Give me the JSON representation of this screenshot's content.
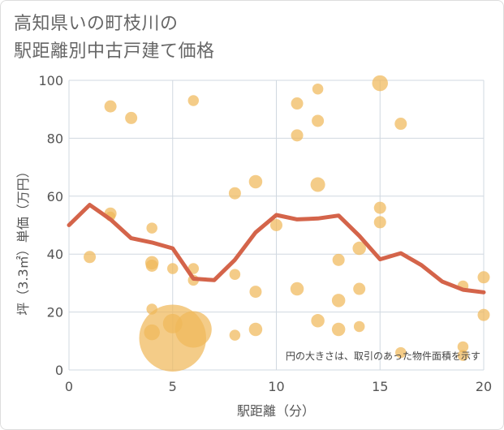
{
  "chart_data": {
    "type": "scatter",
    "title": [
      "高知県いの町枝川の",
      "駅距離別中古戸建て価格"
    ],
    "xlabel": "駅距離（分）",
    "ylabel": "坪（3.3㎡）単価（万円）",
    "xlim": [
      0,
      20
    ],
    "ylim": [
      0,
      100
    ],
    "xticks": [
      0,
      5,
      10,
      15,
      20
    ],
    "yticks": [
      0,
      20,
      40,
      60,
      80,
      100
    ],
    "note": "円の大きさは、取引のあった物件面積を示す",
    "colors": {
      "bubble": "#f0b95a",
      "line": "#d4644a",
      "grid": "#d0d8e0"
    },
    "points": [
      {
        "x": 1,
        "y": 39,
        "s": 1
      },
      {
        "x": 2,
        "y": 91,
        "s": 1
      },
      {
        "x": 2,
        "y": 54,
        "s": 1
      },
      {
        "x": 2,
        "y": 53,
        "s": 0.8
      },
      {
        "x": 3,
        "y": 87,
        "s": 1
      },
      {
        "x": 4,
        "y": 49,
        "s": 0.9
      },
      {
        "x": 4,
        "y": 37,
        "s": 1.1
      },
      {
        "x": 4,
        "y": 36,
        "s": 1
      },
      {
        "x": 4,
        "y": 21,
        "s": 0.9
      },
      {
        "x": 4,
        "y": 13,
        "s": 1.3
      },
      {
        "x": 5,
        "y": 35,
        "s": 0.9
      },
      {
        "x": 5,
        "y": 16,
        "s": 1.6
      },
      {
        "x": 5,
        "y": 11,
        "s": 5.5
      },
      {
        "x": 6,
        "y": 93,
        "s": 0.9
      },
      {
        "x": 6,
        "y": 35,
        "s": 0.9
      },
      {
        "x": 6,
        "y": 31,
        "s": 0.9
      },
      {
        "x": 6,
        "y": 14,
        "s": 3.0
      },
      {
        "x": 8,
        "y": 61,
        "s": 1
      },
      {
        "x": 8,
        "y": 33,
        "s": 0.9
      },
      {
        "x": 8,
        "y": 12,
        "s": 0.9
      },
      {
        "x": 9,
        "y": 65,
        "s": 1.1
      },
      {
        "x": 9,
        "y": 27,
        "s": 1
      },
      {
        "x": 9,
        "y": 14,
        "s": 1.1
      },
      {
        "x": 10,
        "y": 50,
        "s": 1
      },
      {
        "x": 11,
        "y": 92,
        "s": 1
      },
      {
        "x": 11,
        "y": 81,
        "s": 1
      },
      {
        "x": 11,
        "y": 28,
        "s": 1.1
      },
      {
        "x": 12,
        "y": 97,
        "s": 0.9
      },
      {
        "x": 12,
        "y": 86,
        "s": 1
      },
      {
        "x": 12,
        "y": 64,
        "s": 1.2
      },
      {
        "x": 12,
        "y": 17,
        "s": 1.1
      },
      {
        "x": 13,
        "y": 38,
        "s": 1
      },
      {
        "x": 13,
        "y": 24,
        "s": 1.1
      },
      {
        "x": 13,
        "y": 14,
        "s": 1.1
      },
      {
        "x": 14,
        "y": 42,
        "s": 1.1
      },
      {
        "x": 14,
        "y": 28,
        "s": 1
      },
      {
        "x": 14,
        "y": 15,
        "s": 0.9
      },
      {
        "x": 15,
        "y": 99,
        "s": 1.3
      },
      {
        "x": 15,
        "y": 56,
        "s": 1
      },
      {
        "x": 15,
        "y": 51,
        "s": 1
      },
      {
        "x": 16,
        "y": 85,
        "s": 1
      },
      {
        "x": 16,
        "y": 6,
        "s": 0.9
      },
      {
        "x": 19,
        "y": 29,
        "s": 0.9
      },
      {
        "x": 19,
        "y": 8,
        "s": 0.9
      },
      {
        "x": 19,
        "y": 5,
        "s": 0.9
      },
      {
        "x": 20,
        "y": 32,
        "s": 1
      },
      {
        "x": 20,
        "y": 19,
        "s": 1
      }
    ],
    "line": {
      "x": [
        0,
        1,
        2,
        3,
        4,
        5,
        6,
        7,
        8,
        9,
        10,
        11,
        12,
        13,
        14,
        15,
        16,
        17,
        18,
        19,
        20
      ],
      "y": [
        50,
        57,
        52,
        45.5,
        44,
        42,
        31.5,
        31,
        38,
        47.5,
        53.5,
        52,
        52.3,
        53.3,
        46.3,
        38.2,
        40.3,
        36.2,
        30.5,
        27.7,
        26.8
      ]
    }
  }
}
